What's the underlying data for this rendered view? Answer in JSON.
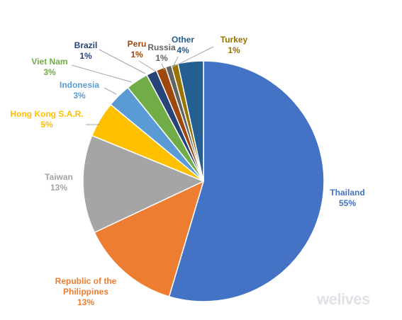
{
  "chart_data": {
    "type": "pie",
    "title": "",
    "start": "top",
    "direction": "clockwise",
    "legend": "none",
    "slices": [
      {
        "name": "Thailand",
        "pct_label": "55%",
        "value": 54.6,
        "color": "#4472C4"
      },
      {
        "name": "Republic of the Philippines",
        "name_lines": [
          "Republic of the",
          "Philippines"
        ],
        "pct_label": "13%",
        "value": 13.4,
        "color": "#ED7D31"
      },
      {
        "name": "Taiwan",
        "pct_label": "13%",
        "value": 13.2,
        "color": "#A5A5A5"
      },
      {
        "name": "Hong Kong S.A.R.",
        "pct_label": "5%",
        "value": 4.8,
        "color": "#FFC000"
      },
      {
        "name": "Indonesia",
        "pct_label": "3%",
        "value": 3.2,
        "color": "#5B9BD5"
      },
      {
        "name": "Viet Nam",
        "pct_label": "3%",
        "value": 3.0,
        "color": "#70AD47"
      },
      {
        "name": "Brazil",
        "pct_label": "1%",
        "value": 1.4,
        "color": "#264478"
      },
      {
        "name": "Peru",
        "pct_label": "1%",
        "value": 1.3,
        "color": "#9E480E"
      },
      {
        "name": "Russia",
        "pct_label": "1%",
        "value": 0.8,
        "color": "#636363"
      },
      {
        "name": "Turkey",
        "pct_label": "1%",
        "value": 0.9,
        "color": "#997300"
      },
      {
        "name": "Other",
        "pct_label": "4%",
        "value": 3.4,
        "color": "#255E91"
      }
    ]
  },
  "watermark": "welives"
}
